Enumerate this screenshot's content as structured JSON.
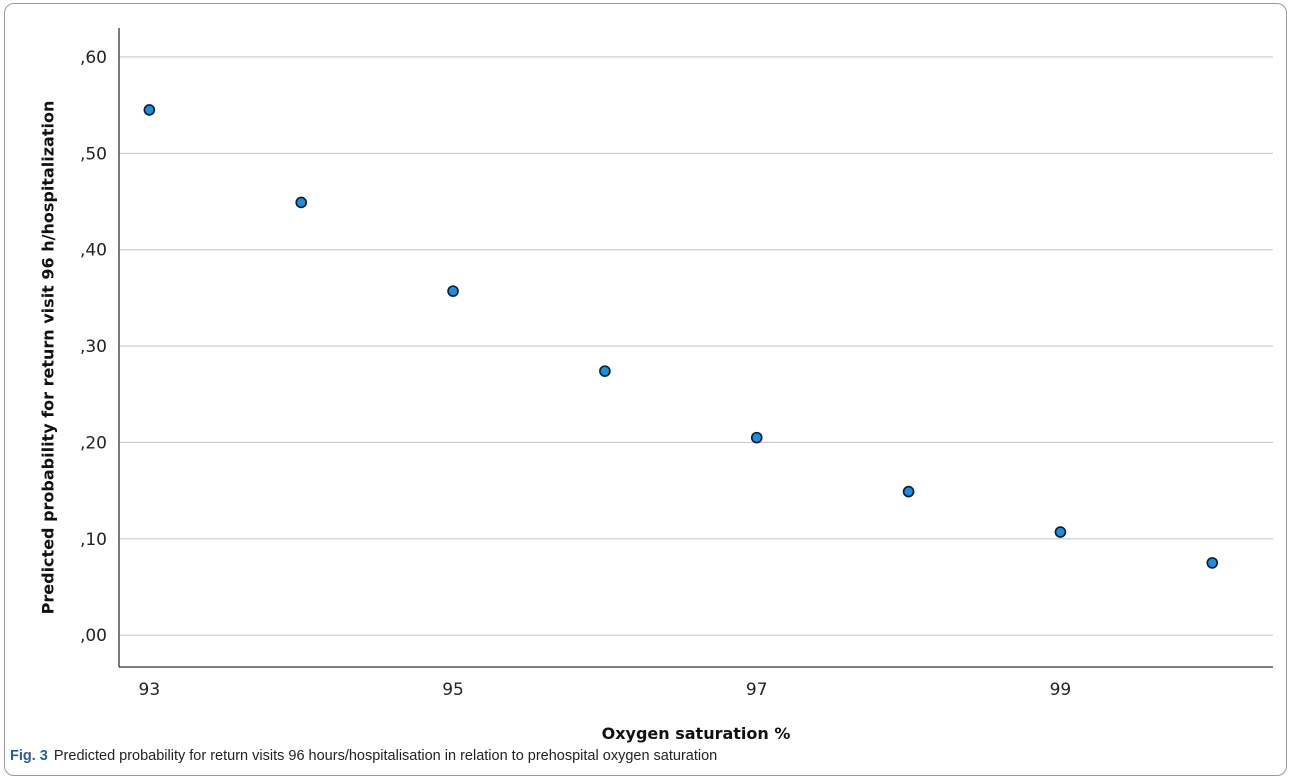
{
  "figure": {
    "caption_label": "Fig. 3",
    "caption_text": "Predicted probability for return visits 96 hours/hospitalisation in relation to prehospital oxygen saturation"
  },
  "chart_data": {
    "type": "scatter",
    "xlabel": "Oxygen saturation %",
    "ylabel": "Predicted probability for return visit 96 h/hospitalization",
    "x": [
      93,
      94,
      95,
      96,
      97,
      98,
      99,
      100
    ],
    "y": [
      0.545,
      0.449,
      0.357,
      0.274,
      0.205,
      0.149,
      0.107,
      0.075
    ],
    "xlim": [
      92.8,
      100.4
    ],
    "ylim": [
      -0.033,
      0.63
    ],
    "x_ticks": [
      93,
      95,
      97,
      99
    ],
    "x_tick_labels": [
      "93",
      "95",
      "97",
      "99"
    ],
    "y_ticks": [
      0.0,
      0.1,
      0.2,
      0.3,
      0.4,
      0.5,
      0.6
    ],
    "y_tick_labels": [
      ",00",
      ",10",
      ",20",
      ",30",
      ",40",
      ",50",
      ",60"
    ],
    "grid": "horizontal",
    "colors": {
      "marker_fill": "#1a8ee0",
      "marker_stroke": "#0a1a33",
      "grid": "#c8c8c8",
      "axis": "#333333"
    }
  }
}
